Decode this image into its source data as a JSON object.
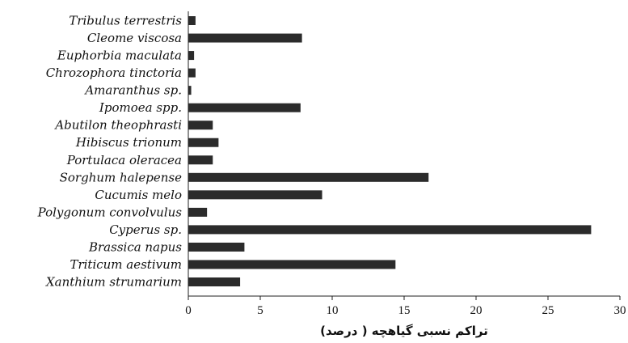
{
  "chart_data": {
    "type": "bar",
    "orientation": "horizontal",
    "categories": [
      "Tribulus terrestris",
      "Cleome viscosa",
      "Euphorbia maculata",
      "Chrozophora tinctoria",
      "Amaranthus sp.",
      "Ipomoea spp.",
      "Abutilon theophrasti",
      "Hibiscus trionum",
      "Portulaca oleracea",
      "Sorghum halepense",
      "Cucumis melo",
      "Polygonum convolvulus",
      "Cyperus sp.",
      "Brassica napus",
      "Triticum aestivum",
      "Xanthium strumarium"
    ],
    "values": [
      0.5,
      7.9,
      0.4,
      0.5,
      0.2,
      7.8,
      1.7,
      2.1,
      1.7,
      16.7,
      9.3,
      1.3,
      28.0,
      3.9,
      14.4,
      3.6
    ],
    "xlabel": "تراکم نسبی گیاهچه ( درصد)",
    "ylabel": "",
    "xlim": [
      0,
      30
    ],
    "xticks": [
      0,
      5,
      10,
      15,
      20,
      25,
      30
    ],
    "grid": false,
    "bar_color": "#2b2b2b"
  }
}
